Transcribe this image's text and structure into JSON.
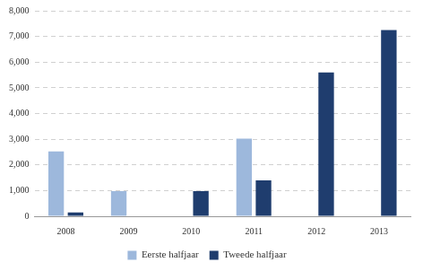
{
  "chart_data": {
    "type": "bar",
    "categories": [
      "2008",
      "2009",
      "2010",
      "2011",
      "2012",
      "2013"
    ],
    "series": [
      {
        "name": "Eerste halfjaar",
        "color": "#9db8dc",
        "values": [
          2520,
          980,
          0,
          3020,
          0,
          0
        ]
      },
      {
        "name": "Tweede halfjaar",
        "color": "#1f3d6e",
        "values": [
          150,
          0,
          980,
          1400,
          5600,
          7250
        ]
      }
    ],
    "ylim": [
      0,
      8000
    ],
    "yticks": [
      0,
      {
        "value": 1000,
        "label": "1,000"
      },
      {
        "value": 2000,
        "label": "2,000"
      },
      {
        "value": 3000,
        "label": "3,000"
      },
      {
        "value": 4000,
        "label": "4,000"
      },
      {
        "value": 5000,
        "label": "5,000"
      },
      {
        "value": 6000,
        "label": "6,000"
      },
      {
        "value": 7000,
        "label": "7,000"
      },
      {
        "value": 8000,
        "label": "8,000"
      }
    ],
    "grid": true,
    "legend": "bottom"
  }
}
